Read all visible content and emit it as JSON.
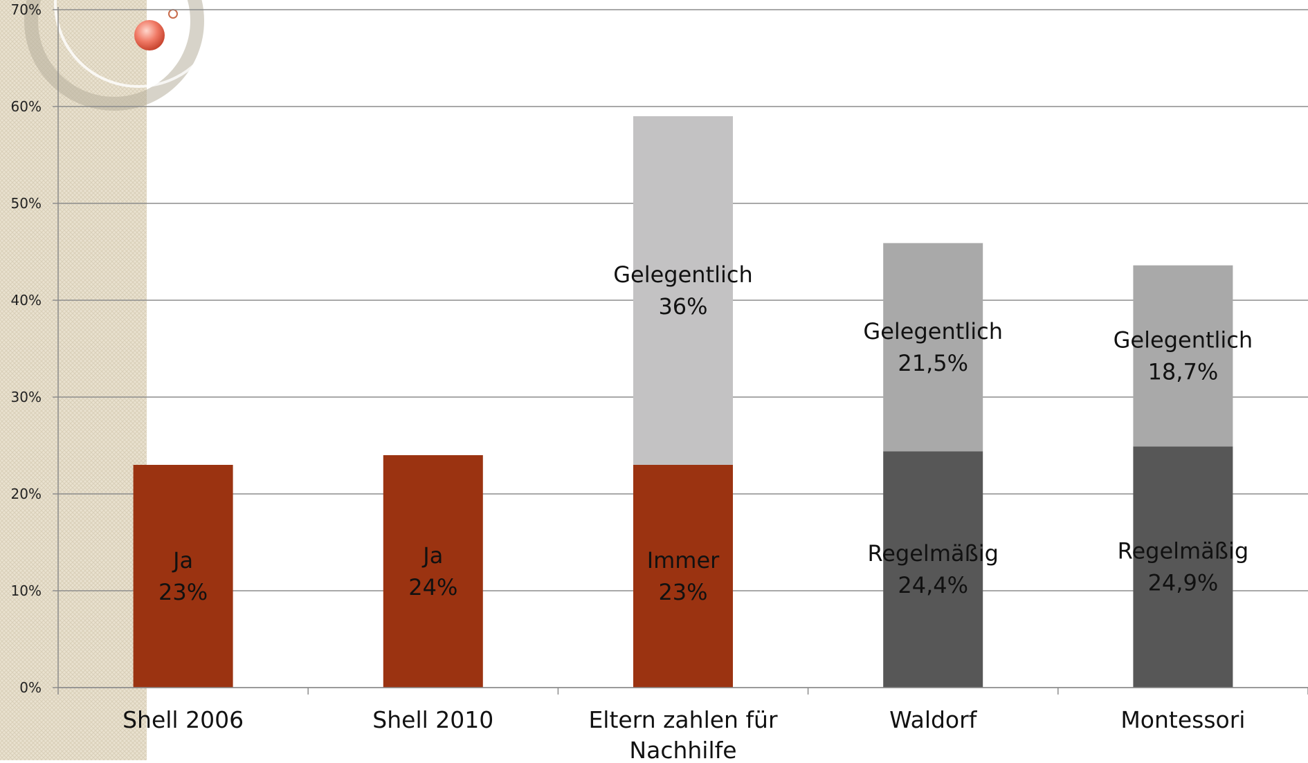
{
  "chart_data": {
    "type": "bar",
    "stacked": true,
    "categories": [
      "Shell 2006",
      "Shell 2010",
      "Eltern zahlen für Nachhilfe",
      "Waldorf",
      "Montessori"
    ],
    "category_lines": [
      [
        "Shell 2006"
      ],
      [
        "Shell 2010"
      ],
      [
        "Eltern zahlen für",
        "Nachhilfe"
      ],
      [
        "Waldorf"
      ],
      [
        "Montessori"
      ]
    ],
    "ylim": [
      0,
      70
    ],
    "y_ticks": [
      0,
      10,
      20,
      30,
      40,
      50,
      60,
      70
    ],
    "y_tick_labels": [
      "0%",
      "10%",
      "20%",
      "30%",
      "40%",
      "50%",
      "60%",
      "70%"
    ],
    "grid": true,
    "bars": [
      {
        "category": "Shell 2006",
        "segments": [
          {
            "value": 23,
            "color": "#9b3311",
            "label_lines": [
              "Ja",
              "23%"
            ]
          }
        ]
      },
      {
        "category": "Shell 2010",
        "segments": [
          {
            "value": 24,
            "color": "#9b3311",
            "label_lines": [
              "Ja",
              "24%"
            ]
          }
        ]
      },
      {
        "category": "Eltern zahlen für Nachhilfe",
        "segments": [
          {
            "value": 23,
            "color": "#9b3311",
            "label_lines": [
              "Immer",
              "23%"
            ]
          },
          {
            "value": 36,
            "color": "#c3c2c3",
            "label_lines": [
              "Gelegentlich",
              "36%"
            ]
          }
        ]
      },
      {
        "category": "Waldorf",
        "segments": [
          {
            "value": 24.4,
            "color": "#575757",
            "label_lines": [
              "Regelmäßig",
              "24,4%"
            ]
          },
          {
            "value": 21.5,
            "color": "#a9a9a9",
            "label_lines": [
              "Gelegentlich",
              "21,5%"
            ]
          }
        ]
      },
      {
        "category": "Montessori",
        "segments": [
          {
            "value": 24.9,
            "color": "#575757",
            "label_lines": [
              "Regelmäßig",
              "24,9%"
            ]
          },
          {
            "value": 18.7,
            "color": "#a9a9a9",
            "label_lines": [
              "Gelegentlich",
              "18,7%"
            ]
          }
        ]
      }
    ]
  }
}
